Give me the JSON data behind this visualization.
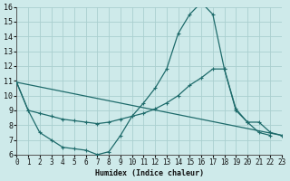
{
  "background_color": "#ceeaea",
  "grid_color": "#aacfcf",
  "line_color": "#1e6b6b",
  "x_min": 0,
  "x_max": 23,
  "y_min": 6,
  "y_max": 16,
  "xlabel": "Humidex (Indice chaleur)",
  "line1_x": [
    0,
    1,
    2,
    3,
    4,
    5,
    6,
    7,
    8,
    9,
    10,
    11,
    12,
    13,
    14,
    15,
    16,
    17,
    18,
    19,
    20,
    21,
    22,
    23
  ],
  "line1_y": [
    10.9,
    9.0,
    7.5,
    7.0,
    6.5,
    6.4,
    6.3,
    6.0,
    6.2,
    7.3,
    8.6,
    9.5,
    10.5,
    11.8,
    14.2,
    15.5,
    16.3,
    15.5,
    11.8,
    9.1,
    8.2,
    7.5,
    7.3,
    null
  ],
  "line2_x": [
    0,
    1,
    2,
    3,
    4,
    5,
    6,
    7,
    8,
    9,
    10,
    11,
    12,
    13,
    14,
    15,
    16,
    17,
    18,
    19,
    20,
    21,
    22,
    23
  ],
  "line2_y": [
    10.9,
    9.0,
    8.8,
    8.6,
    8.4,
    8.3,
    8.2,
    8.1,
    8.2,
    8.4,
    8.6,
    8.8,
    9.1,
    9.5,
    10.0,
    10.7,
    11.2,
    11.8,
    11.8,
    9.0,
    8.2,
    8.2,
    7.5,
    7.3
  ],
  "line3_x": [
    0,
    23
  ],
  "line3_y": [
    10.9,
    7.3
  ]
}
